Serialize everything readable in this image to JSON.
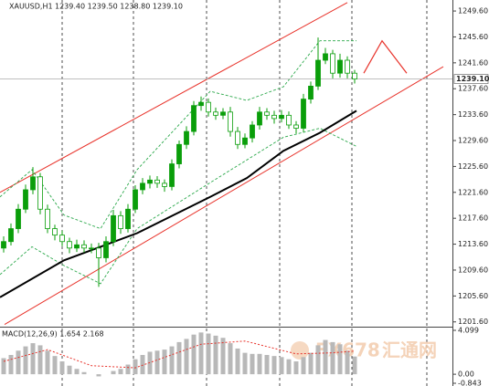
{
  "chart_data": {
    "type": "candlestick",
    "title": "XAUUSD,H1",
    "quote": "1239.40 1239.50 1238.80 1239.10",
    "color": "#0a9e0a",
    "xlim": [
      -0.5,
      61.375
    ],
    "ylim": [
      1201.0,
      1251.3
    ],
    "yticks": [
      {
        "value": 1201.6,
        "label": "1201.60"
      },
      {
        "value": 1205.6,
        "label": "1205.60"
      },
      {
        "value": 1209.6,
        "label": "1209.60"
      },
      {
        "value": 1213.6,
        "label": "1213.60"
      },
      {
        "value": 1217.6,
        "label": "1217.60"
      },
      {
        "value": 1221.6,
        "label": "1221.60"
      },
      {
        "value": 1225.6,
        "label": "1225.60"
      },
      {
        "value": 1229.6,
        "label": "1229.60"
      },
      {
        "value": 1233.6,
        "label": "1233.60"
      },
      {
        "value": 1237.6,
        "label": "1237.60"
      },
      {
        "value": 1241.6,
        "label": "1241.60"
      },
      {
        "value": 1245.6,
        "label": "1245.60"
      },
      {
        "value": 1249.6,
        "label": "1249.60"
      }
    ],
    "last_price": {
      "value": 1239.1,
      "label": "1239.10"
    },
    "open": [
      1213,
      1214,
      1216,
      1219,
      1222,
      1224,
      1219,
      1216,
      1215,
      1214,
      1213,
      1213.5,
      1213,
      1213,
      1211.5,
      1214,
      1218,
      1216,
      1219,
      1222,
      1223,
      1223.5,
      1223,
      1222.5,
      1226,
      1229,
      1231,
      1235,
      1235.5,
      1234,
      1233.5,
      1234,
      1231,
      1229,
      1230,
      1232,
      1234,
      1233.5,
      1233,
      1233.5,
      1232,
      1231.5,
      1236,
      1238,
      1242,
      1243,
      1240,
      1242,
      1240
    ],
    "high": [
      1214.8,
      1216.8,
      1219.8,
      1222.8,
      1225.5,
      1224.6,
      1219.7,
      1216.6,
      1215.7,
      1214.6,
      1214.3,
      1214.2,
      1213.7,
      1213.8,
      1214.8,
      1218.9,
      1218.7,
      1219.8,
      1222.7,
      1223.8,
      1224.2,
      1224.1,
      1223.6,
      1226.7,
      1229.6,
      1231.8,
      1235.7,
      1236.4,
      1236.1,
      1234.7,
      1234.6,
      1234.8,
      1231.7,
      1230.7,
      1232.6,
      1234.8,
      1234.6,
      1234.2,
      1234.3,
      1234.1,
      1232.6,
      1236.8,
      1238.7,
      1245.5,
      1243.9,
      1243.6,
      1243,
      1242.6,
      1240.5
    ],
    "low": [
      1212.3,
      1213.4,
      1215.3,
      1218.4,
      1221.3,
      1218.2,
      1215.3,
      1214.2,
      1213.3,
      1212.2,
      1212.4,
      1212.3,
      1212.2,
      1207,
      1210.8,
      1213.3,
      1215.2,
      1215.4,
      1218.4,
      1221.3,
      1222.2,
      1222.3,
      1221.7,
      1221.9,
      1225.3,
      1228.3,
      1230.4,
      1234.2,
      1233.3,
      1232.8,
      1232.9,
      1230.2,
      1228.3,
      1228.4,
      1229.3,
      1231.3,
      1232.8,
      1232.2,
      1232.4,
      1231.4,
      1230.7,
      1230.9,
      1235.3,
      1237.4,
      1241.4,
      1239.2,
      1239.3,
      1239.2,
      1238.4
    ],
    "close": [
      1214,
      1216,
      1219,
      1222,
      1224,
      1219,
      1216,
      1215,
      1214,
      1213,
      1213.5,
      1213,
      1213,
      1211.5,
      1214,
      1218,
      1216,
      1219,
      1222,
      1223,
      1223.5,
      1223,
      1222.5,
      1226,
      1229,
      1231,
      1235,
      1235.5,
      1234,
      1233.5,
      1234,
      1231,
      1229,
      1230,
      1232,
      1234,
      1233.5,
      1233,
      1233.5,
      1232,
      1231.5,
      1236,
      1238,
      1242,
      1243,
      1240,
      1242,
      1240,
      1239.1
    ],
    "ma": {
      "color": "#000000",
      "x": [
        -0.5,
        8.25,
        13.25,
        18.25,
        28.25,
        33.25,
        38.25,
        43.25,
        48.25
      ],
      "values": [
        1205.4,
        1211.1,
        1213.2,
        1215.3,
        1220.9,
        1223.8,
        1228,
        1230.8,
        1234.2
      ]
    },
    "bands": [
      {
        "color": "#2aa84a",
        "x": [
          -0.5,
          3.875,
          8.25,
          13.25,
          18.25,
          28.25,
          33.25,
          38.25,
          43.25,
          48.25
        ],
        "values": [
          1220.9,
          1225.1,
          1218.1,
          1216,
          1225.1,
          1237.2,
          1235.8,
          1237.9,
          1245,
          1245
        ]
      },
      {
        "color": "#2aa84a",
        "x": [
          -0.5,
          3.875,
          8.25,
          13.25,
          18.25,
          28.25,
          33.25,
          38.25,
          43.25,
          48.25
        ],
        "values": [
          1208.9,
          1213.2,
          1210.3,
          1207.5,
          1216,
          1223.1,
          1226.6,
          1230.1,
          1231.5,
          1228.7
        ]
      }
    ],
    "channel": [
      {
        "color": "#e8322a",
        "x": [
          -0.5,
          47
        ],
        "values": [
          1221.6,
          1250.9
        ]
      },
      {
        "color": "#e8322a",
        "x": [
          0.125,
          60.125
        ],
        "values": [
          1201.2,
          1241.0
        ]
      }
    ],
    "forecast": {
      "color": "#e8322a",
      "x": [
        49.25,
        51.75,
        55.125
      ],
      "values": [
        1240,
        1245,
        1240
      ]
    },
    "macd": {
      "title": "MACD(12,26,9) 1.654 2.168",
      "ylim": [
        -0.843,
        4.099
      ],
      "yticks": [
        4.099,
        {
          "value": 0,
          "label": "0.00"
        },
        -0.843
      ],
      "histogram": {
        "color": "#b8b8b8",
        "values": [
          1.5,
          1.8,
          2.2,
          2.6,
          2.9,
          2.7,
          2.2,
          1.7,
          1.2,
          0.8,
          0.5,
          0.2,
          0,
          -0.2,
          0,
          0.3,
          0.5,
          0.9,
          1.4,
          1.8,
          2.1,
          2.2,
          2.3,
          2.6,
          3.0,
          3.3,
          3.7,
          3.9,
          3.8,
          3.6,
          3.4,
          2.9,
          2.4,
          2.0,
          1.9,
          1.9,
          1.8,
          1.7,
          1.6,
          1.4,
          1.2,
          1.6,
          2.0,
          2.7,
          3.2,
          3.0,
          2.8,
          2.2,
          1.654
        ]
      },
      "signal": {
        "color": "#e8322a",
        "x": [
          0,
          6,
          12,
          18,
          27,
          33,
          40,
          45,
          48
        ],
        "values": [
          1.2,
          2.3,
          0.8,
          0.6,
          2.8,
          3.1,
          1.9,
          2.0,
          2.168
        ]
      }
    },
    "watermark": "FX678",
    "watermark_cn": "汇通网"
  }
}
